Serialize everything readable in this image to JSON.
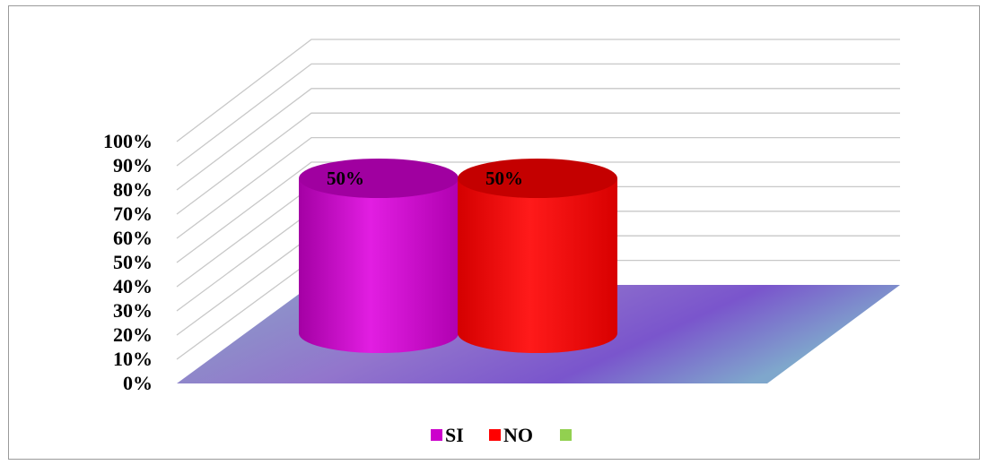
{
  "chart_data": {
    "type": "bar",
    "style": "3d-cylinder",
    "categories": [
      "SI",
      "NO",
      ""
    ],
    "values": [
      50,
      50,
      null
    ],
    "data_labels": [
      "50%",
      "50%",
      ""
    ],
    "ylim": [
      0,
      100
    ],
    "ytick_step": 10,
    "y_tick_labels": [
      "0%",
      "10%",
      "20%",
      "30%",
      "40%",
      "50%",
      "60%",
      "70%",
      "80%",
      "90%",
      "100%"
    ],
    "grid": true,
    "legend_position": "bottom",
    "legend": [
      {
        "label": "SI",
        "color": "#cc00cc"
      },
      {
        "label": "NO",
        "color": "#ff0000"
      },
      {
        "label": "",
        "color": "#92d050"
      }
    ],
    "floor_color": "#7e84c6"
  }
}
